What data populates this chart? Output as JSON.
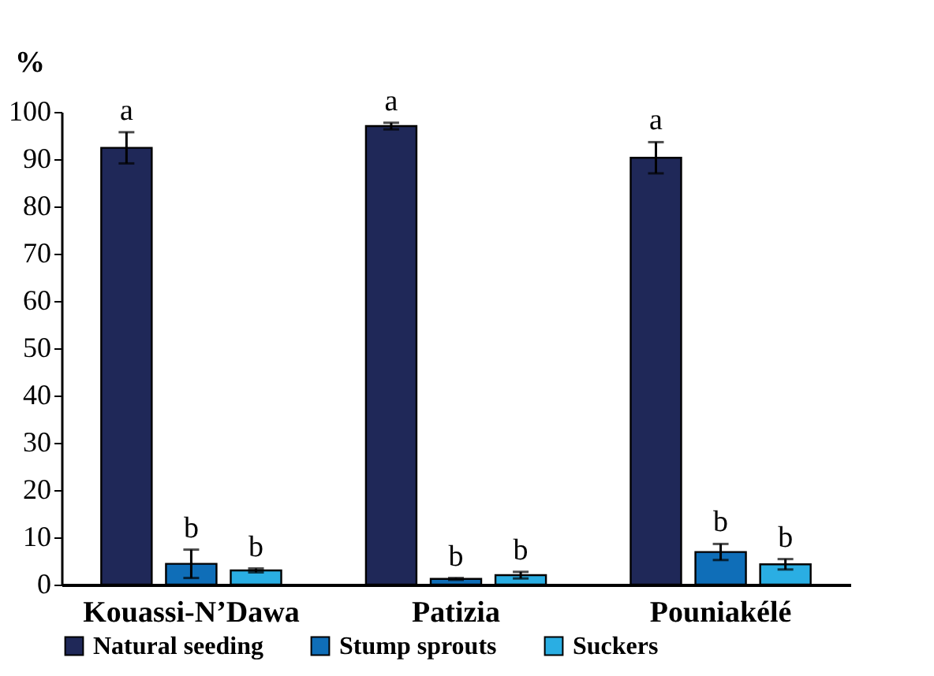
{
  "chart_data": {
    "type": "bar",
    "ylabel": "%",
    "categories": [
      "Kouassi-N’Dawa",
      "Patizia",
      "Pouniakélé"
    ],
    "series": [
      {
        "name": "Natural seeding",
        "color": "#1f2858",
        "values": [
          92.4,
          97.0,
          90.3
        ],
        "errors": [
          3.3,
          0.7,
          3.3
        ]
      },
      {
        "name": "Stump sprouts",
        "color": "#0f6eb8",
        "values": [
          4.4,
          1.2,
          6.9
        ],
        "errors": [
          3.0,
          0.2,
          1.7
        ]
      },
      {
        "name": "Suckers",
        "color": "#2aaee3",
        "values": [
          3.0,
          2.0,
          4.3
        ],
        "errors": [
          0.4,
          0.7,
          1.1
        ]
      }
    ],
    "annotations": [
      "a",
      "b",
      "b",
      "a",
      "b",
      "b",
      "a",
      "b",
      "b"
    ],
    "ylim": [
      0,
      100
    ],
    "yticks": [
      0,
      10,
      20,
      30,
      40,
      50,
      60,
      70,
      80,
      90,
      100
    ],
    "grid": false,
    "legend": "bottom"
  }
}
